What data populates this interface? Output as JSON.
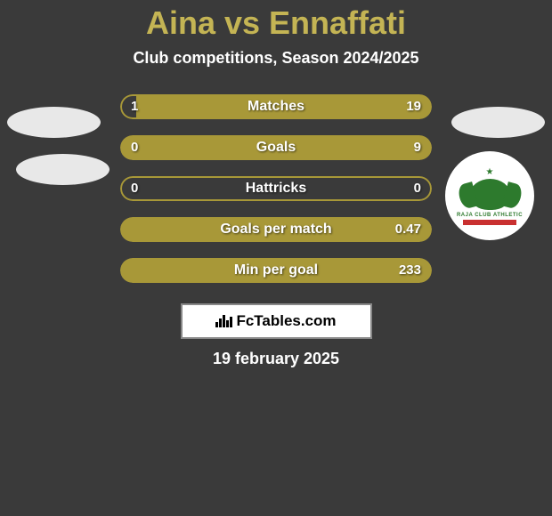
{
  "title": "Aina vs Ennaffati",
  "subtitle": "Club competitions, Season 2024/2025",
  "date": "19 february 2025",
  "watermark": "FcTables.com",
  "colors": {
    "background": "#3a3a3a",
    "bar_fill": "#a89838",
    "bar_border": "#a89838",
    "title_color": "#c4b454",
    "text_color": "#ffffff",
    "crest_green": "#2d7a2d",
    "crest_red": "#c93030"
  },
  "stats": [
    {
      "label": "Matches",
      "left_value": "1",
      "right_value": "19",
      "left_pct": 5,
      "right_pct": 95
    },
    {
      "label": "Goals",
      "left_value": "0",
      "right_value": "9",
      "left_pct": 0,
      "right_pct": 100
    },
    {
      "label": "Hattricks",
      "left_value": "0",
      "right_value": "0",
      "left_pct": 50,
      "right_pct": 50
    },
    {
      "label": "Goals per match",
      "left_value": "",
      "right_value": "0.47",
      "left_pct": 0,
      "right_pct": 100
    },
    {
      "label": "Min per goal",
      "left_value": "",
      "right_value": "233",
      "left_pct": 0,
      "right_pct": 100
    }
  ]
}
